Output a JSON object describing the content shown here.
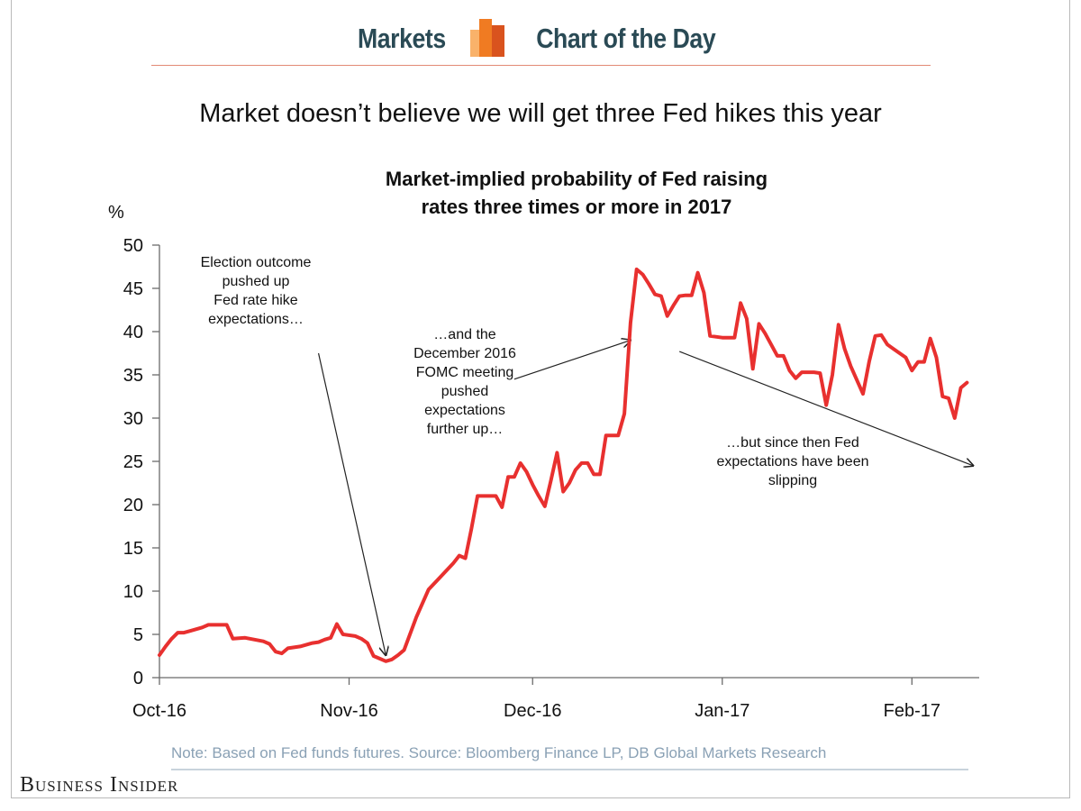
{
  "header": {
    "left_text": "Markets",
    "right_text": "Chart of the Day",
    "logo_icon": "bar-chart-icon",
    "accent_color": "#f07b22",
    "text_color": "#2a4a55"
  },
  "headline": "Market doesn’t believe we will get three Fed hikes this year",
  "chart_data": {
    "type": "line",
    "title": "Market-implied probability of Fed raising rates three times or more in 2017",
    "title_lines": [
      "Market-implied probability of Fed raising",
      "rates three times or more in 2017"
    ],
    "ylabel": "%",
    "xlabel": "",
    "ylim": [
      0,
      50
    ],
    "yticks": [
      0,
      5,
      10,
      15,
      20,
      25,
      30,
      35,
      40,
      45,
      50
    ],
    "xlim": [
      "2016-10-01",
      "2017-02-12"
    ],
    "xticks": [
      {
        "date": "2016-10-01",
        "label": "Oct-16"
      },
      {
        "date": "2016-11-01",
        "label": "Nov-16"
      },
      {
        "date": "2016-12-01",
        "label": "Dec-16"
      },
      {
        "date": "2017-01-01",
        "label": "Jan-17"
      },
      {
        "date": "2017-02-01",
        "label": "Feb-17"
      }
    ],
    "grid": false,
    "line_color": "#e8302f",
    "series": [
      {
        "points": [
          [
            "2016-10-01",
            2.6
          ],
          [
            "2016-10-02",
            3.6
          ],
          [
            "2016-10-03",
            4.5
          ],
          [
            "2016-10-04",
            5.2
          ],
          [
            "2016-10-05",
            5.2
          ],
          [
            "2016-10-06",
            5.4
          ],
          [
            "2016-10-08",
            5.8
          ],
          [
            "2016-10-09",
            6.1
          ],
          [
            "2016-10-11",
            6.1
          ],
          [
            "2016-10-12",
            6.1
          ],
          [
            "2016-10-13",
            4.5
          ],
          [
            "2016-10-15",
            4.6
          ],
          [
            "2016-10-18",
            4.2
          ],
          [
            "2016-10-19",
            3.9
          ],
          [
            "2016-10-20",
            3.0
          ],
          [
            "2016-10-21",
            2.8
          ],
          [
            "2016-10-22",
            3.4
          ],
          [
            "2016-10-24",
            3.6
          ],
          [
            "2016-10-26",
            4.0
          ],
          [
            "2016-10-27",
            4.1
          ],
          [
            "2016-10-28",
            4.4
          ],
          [
            "2016-10-29",
            4.6
          ],
          [
            "2016-10-30",
            6.2
          ],
          [
            "2016-10-31",
            5.0
          ],
          [
            "2016-11-02",
            4.8
          ],
          [
            "2016-11-03",
            4.5
          ],
          [
            "2016-11-04",
            4.0
          ],
          [
            "2016-11-05",
            2.5
          ],
          [
            "2016-11-06",
            2.2
          ],
          [
            "2016-11-07",
            1.9
          ],
          [
            "2016-11-08",
            2.1
          ],
          [
            "2016-11-09",
            2.6
          ],
          [
            "2016-11-10",
            3.2
          ],
          [
            "2016-11-12",
            7.0
          ],
          [
            "2016-11-14",
            10.2
          ],
          [
            "2016-11-16",
            11.7
          ],
          [
            "2016-11-18",
            13.2
          ],
          [
            "2016-11-19",
            14.1
          ],
          [
            "2016-11-20",
            13.8
          ],
          [
            "2016-11-21",
            17.2
          ],
          [
            "2016-11-22",
            21.0
          ],
          [
            "2016-11-24",
            21.0
          ],
          [
            "2016-11-25",
            21.0
          ],
          [
            "2016-11-26",
            19.7
          ],
          [
            "2016-11-27",
            23.2
          ],
          [
            "2016-11-28",
            23.2
          ],
          [
            "2016-11-29",
            24.8
          ],
          [
            "2016-11-30",
            23.8
          ],
          [
            "2016-12-01",
            22.3
          ],
          [
            "2016-12-02",
            21.0
          ],
          [
            "2016-12-03",
            19.8
          ],
          [
            "2016-12-04",
            22.8
          ],
          [
            "2016-12-05",
            26.0
          ],
          [
            "2016-12-06",
            21.5
          ],
          [
            "2016-12-07",
            22.5
          ],
          [
            "2016-12-08",
            24.0
          ],
          [
            "2016-12-09",
            24.8
          ],
          [
            "2016-12-10",
            24.8
          ],
          [
            "2016-12-11",
            23.5
          ],
          [
            "2016-12-12",
            23.5
          ],
          [
            "2016-12-13",
            28.0
          ],
          [
            "2016-12-14",
            28.0
          ],
          [
            "2016-12-15",
            28.0
          ],
          [
            "2016-12-16",
            30.5
          ],
          [
            "2016-12-17",
            41.0
          ],
          [
            "2016-12-18",
            47.2
          ],
          [
            "2016-12-19",
            46.6
          ],
          [
            "2016-12-20",
            45.5
          ],
          [
            "2016-12-21",
            44.3
          ],
          [
            "2016-12-22",
            44.1
          ],
          [
            "2016-12-23",
            41.8
          ],
          [
            "2016-12-24",
            43.0
          ],
          [
            "2016-12-25",
            44.1
          ],
          [
            "2016-12-26",
            44.2
          ],
          [
            "2016-12-27",
            44.2
          ],
          [
            "2016-12-28",
            46.8
          ],
          [
            "2016-12-29",
            44.5
          ],
          [
            "2016-12-30",
            39.5
          ],
          [
            "2017-01-01",
            39.3
          ],
          [
            "2017-01-02",
            39.3
          ],
          [
            "2017-01-03",
            39.3
          ],
          [
            "2017-01-04",
            43.3
          ],
          [
            "2017-01-05",
            41.5
          ],
          [
            "2017-01-06",
            35.7
          ],
          [
            "2017-01-07",
            40.9
          ],
          [
            "2017-01-08",
            39.8
          ],
          [
            "2017-01-09",
            38.5
          ],
          [
            "2017-01-10",
            37.2
          ],
          [
            "2017-01-11",
            37.2
          ],
          [
            "2017-01-12",
            35.5
          ],
          [
            "2017-01-13",
            34.6
          ],
          [
            "2017-01-14",
            35.3
          ],
          [
            "2017-01-16",
            35.3
          ],
          [
            "2017-01-17",
            35.2
          ],
          [
            "2017-01-18",
            31.5
          ],
          [
            "2017-01-19",
            35.0
          ],
          [
            "2017-01-20",
            40.8
          ],
          [
            "2017-01-21",
            38.0
          ],
          [
            "2017-01-22",
            36.0
          ],
          [
            "2017-01-24",
            32.8
          ],
          [
            "2017-01-25",
            36.5
          ],
          [
            "2017-01-26",
            39.5
          ],
          [
            "2017-01-27",
            39.6
          ],
          [
            "2017-01-28",
            38.5
          ],
          [
            "2017-01-29",
            38.0
          ],
          [
            "2017-01-30",
            37.5
          ],
          [
            "2017-01-31",
            37.0
          ],
          [
            "2017-02-01",
            35.5
          ],
          [
            "2017-02-02",
            36.5
          ],
          [
            "2017-02-03",
            36.5
          ],
          [
            "2017-02-04",
            39.2
          ],
          [
            "2017-02-05",
            37.0
          ],
          [
            "2017-02-06",
            32.5
          ],
          [
            "2017-02-07",
            32.3
          ],
          [
            "2017-02-08",
            30.0
          ],
          [
            "2017-02-09",
            33.5
          ],
          [
            "2017-02-10",
            34.1
          ]
        ]
      }
    ],
    "annotations": [
      {
        "text_lines": [
          "Election outcome",
          "pushed up",
          "Fed rate hike",
          "expectations…"
        ],
        "arrow_from": [
          "2016-10-27",
          37.5
        ],
        "arrow_to": [
          "2016-11-07",
          2.6
        ]
      },
      {
        "text_lines": [
          "…and the",
          "December 2016",
          "FOMC meeting",
          "pushed",
          "expectations",
          "further up…"
        ],
        "arrow_from": [
          "2016-11-28",
          34.5
        ],
        "arrow_to": [
          "2016-12-17",
          39.0
        ]
      },
      {
        "text_lines": [
          "…but since then Fed",
          "expectations have been",
          "slipping"
        ],
        "arrow_from": [
          "2016-12-25",
          37.7
        ],
        "arrow_to": [
          "2017-02-11",
          24.5
        ]
      }
    ]
  },
  "footer": {
    "note": "Note: Based on Fed funds futures. Source: Bloomberg Finance LP,  DB Global Markets Research",
    "brand": "Business Insider"
  }
}
